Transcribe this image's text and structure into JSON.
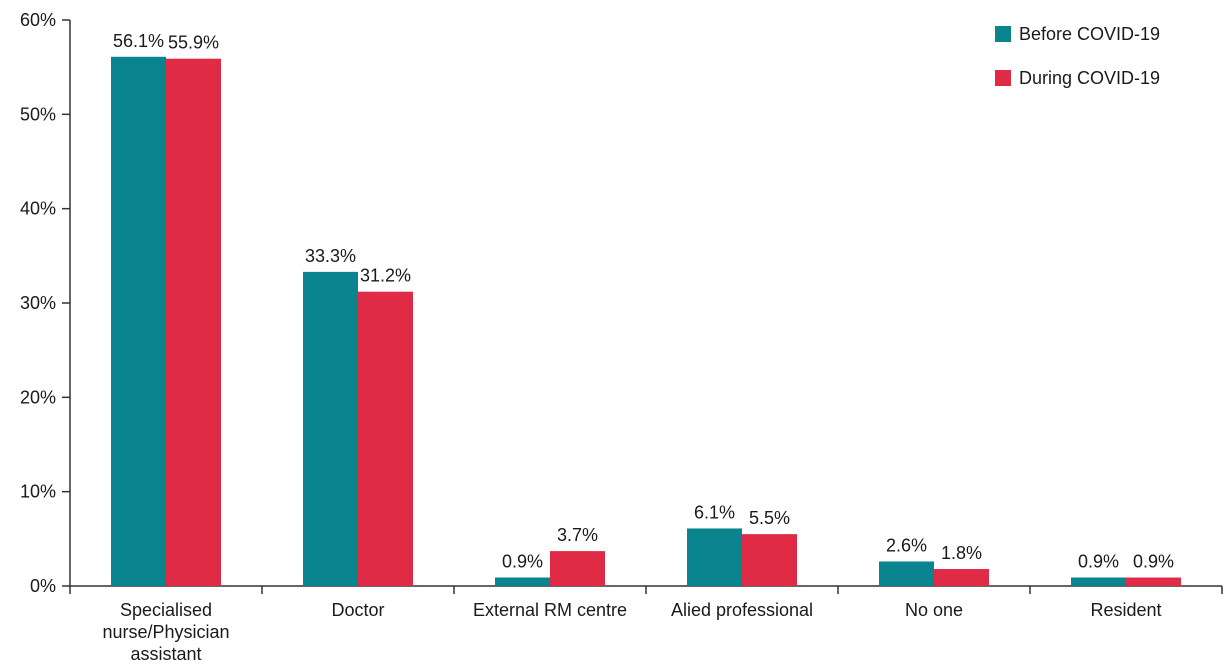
{
  "chart_data": {
    "type": "bar",
    "title": "",
    "xlabel": "",
    "ylabel": "",
    "ylim": [
      0,
      60
    ],
    "y_ticks": [
      {
        "value": 0,
        "label": "0%"
      },
      {
        "value": 10,
        "label": "10%"
      },
      {
        "value": 20,
        "label": "20%"
      },
      {
        "value": 30,
        "label": "30%"
      },
      {
        "value": 40,
        "label": "40%"
      },
      {
        "value": 50,
        "label": "50%"
      },
      {
        "value": 60,
        "label": "60%"
      }
    ],
    "categories": [
      [
        "Specialised",
        "nurse/Physician",
        "assistant"
      ],
      [
        "Doctor"
      ],
      [
        "External RM centre"
      ],
      [
        "Alied professional"
      ],
      [
        "No one"
      ],
      [
        "Resident"
      ]
    ],
    "series": [
      {
        "name": "Before COVID-19",
        "color": "#0a8590",
        "values": [
          56.1,
          33.3,
          0.9,
          6.1,
          2.6,
          0.9
        ],
        "labels": [
          "56.1%",
          "33.3%",
          "0.9%",
          "6.1%",
          "2.6%",
          "0.9%"
        ]
      },
      {
        "name": "During COVID-19",
        "color": "#e02b47",
        "values": [
          55.9,
          31.2,
          3.7,
          5.5,
          1.8,
          0.9
        ],
        "labels": [
          "55.9%",
          "31.2%",
          "3.7%",
          "5.5%",
          "1.8%",
          "0.9%"
        ]
      }
    ],
    "grid": false,
    "legend_position": "top-right"
  }
}
